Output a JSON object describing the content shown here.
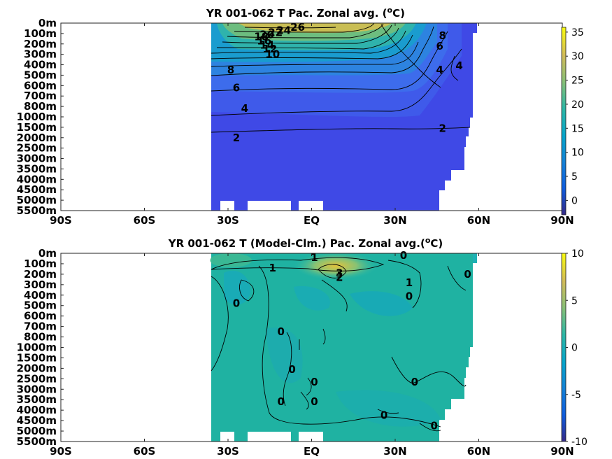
{
  "chart_data": [
    {
      "type": "heatmap",
      "title": "YR 001-062 T Pac. Zonal avg. (°C)",
      "title_main": "YR 001-062 T Pac. Zonal avg. (",
      "title_sup": "o",
      "title_end": "C)",
      "x_ticks": [
        "90S",
        "60S",
        "30S",
        "EQ",
        "30N",
        "60N",
        "90N"
      ],
      "x_tick_values": [
        -90,
        -60,
        -30,
        0,
        30,
        60,
        90
      ],
      "y_ticks": [
        "0m",
        "100m",
        "200m",
        "300m",
        "400m",
        "500m",
        "600m",
        "700m",
        "800m",
        "1000m",
        "1500m",
        "2000m",
        "2500m",
        "3000m",
        "3500m",
        "4000m",
        "4500m",
        "5000m",
        "5500m"
      ],
      "xlim": [
        -90,
        90
      ],
      "colorbar": {
        "ticks": [
          "35",
          "30",
          "25",
          "20",
          "15",
          "10",
          "5",
          "0"
        ],
        "tick_values": [
          35,
          30,
          25,
          20,
          15,
          10,
          5,
          0
        ],
        "range": [
          -3,
          36
        ]
      },
      "data_lat_range": [
        -35,
        62
      ],
      "contour_labels": [
        {
          "text": "26",
          "lat": -5,
          "depth_idx": 0.4
        },
        {
          "text": "24",
          "lat": -10,
          "depth_idx": 0.7
        },
        {
          "text": "22",
          "lat": -13,
          "depth_idx": 0.9
        },
        {
          "text": "20",
          "lat": -16,
          "depth_idx": 1.1
        },
        {
          "text": "18",
          "lat": -18,
          "depth_idx": 1.3
        },
        {
          "text": "16",
          "lat": -17,
          "depth_idx": 1.7
        },
        {
          "text": "14",
          "lat": -16,
          "depth_idx": 2.1
        },
        {
          "text": "12",
          "lat": -15,
          "depth_idx": 2.5
        },
        {
          "text": "10",
          "lat": -14,
          "depth_idx": 3.0
        },
        {
          "text": "8",
          "lat": -29,
          "depth_idx": 4.5
        },
        {
          "text": "6",
          "lat": -27,
          "depth_idx": 6.2
        },
        {
          "text": "4",
          "lat": -24,
          "depth_idx": 8.2
        },
        {
          "text": "2",
          "lat": -27,
          "depth_idx": 11.0
        },
        {
          "text": "8",
          "lat": 47,
          "depth_idx": 1.2
        },
        {
          "text": "6",
          "lat": 46,
          "depth_idx": 2.2
        },
        {
          "text": "4",
          "lat": 53,
          "depth_idx": 4.1
        },
        {
          "text": "4",
          "lat": 46,
          "depth_idx": 4.5
        },
        {
          "text": "2",
          "lat": 47,
          "depth_idx": 10.1
        }
      ]
    },
    {
      "type": "heatmap",
      "title": "YR 001-062 T (Model-Clm.) Pac. Zonal avg.(°C)",
      "title_main": "YR 001-062 T (Model-Clm.) Pac. Zonal avg.(",
      "title_sup": "o",
      "title_end": "C)",
      "x_ticks": [
        "90S",
        "60S",
        "30S",
        "EQ",
        "30N",
        "60N",
        "90N"
      ],
      "x_tick_values": [
        -90,
        -60,
        -30,
        0,
        30,
        60,
        90
      ],
      "y_ticks": [
        "0m",
        "100m",
        "200m",
        "300m",
        "400m",
        "500m",
        "600m",
        "700m",
        "800m",
        "1000m",
        "1500m",
        "2000m",
        "2500m",
        "3000m",
        "3500m",
        "4000m",
        "4500m",
        "5000m",
        "5500m"
      ],
      "xlim": [
        -90,
        90
      ],
      "colorbar": {
        "ticks": [
          "10",
          "5",
          "0",
          "-5",
          "-10"
        ],
        "tick_values": [
          10,
          5,
          0,
          -5,
          -10
        ],
        "range": [
          -10,
          10
        ]
      },
      "data_lat_range": [
        -35,
        62
      ],
      "contour_labels": [
        {
          "text": "1",
          "lat": 1,
          "depth_idx": 0.4
        },
        {
          "text": "0",
          "lat": 33,
          "depth_idx": 0.2
        },
        {
          "text": "1",
          "lat": -14,
          "depth_idx": 1.4
        },
        {
          "text": "3",
          "lat": 10,
          "depth_idx": 1.9
        },
        {
          "text": "2",
          "lat": 10,
          "depth_idx": 2.3
        },
        {
          "text": "0",
          "lat": 56,
          "depth_idx": 2.0
        },
        {
          "text": "1",
          "lat": 35,
          "depth_idx": 2.8
        },
        {
          "text": "0",
          "lat": 35,
          "depth_idx": 4.1
        },
        {
          "text": "0",
          "lat": -27,
          "depth_idx": 4.8
        },
        {
          "text": "0",
          "lat": -11,
          "depth_idx": 7.5
        },
        {
          "text": "0",
          "lat": -7,
          "depth_idx": 11.1
        },
        {
          "text": "0",
          "lat": 1,
          "depth_idx": 12.3
        },
        {
          "text": "0",
          "lat": 37,
          "depth_idx": 12.3
        },
        {
          "text": "0",
          "lat": -11,
          "depth_idx": 14.2
        },
        {
          "text": "0",
          "lat": 1,
          "depth_idx": 14.2
        },
        {
          "text": "0",
          "lat": 26,
          "depth_idx": 15.5
        },
        {
          "text": "0",
          "lat": 44,
          "depth_idx": 16.5
        }
      ]
    }
  ]
}
